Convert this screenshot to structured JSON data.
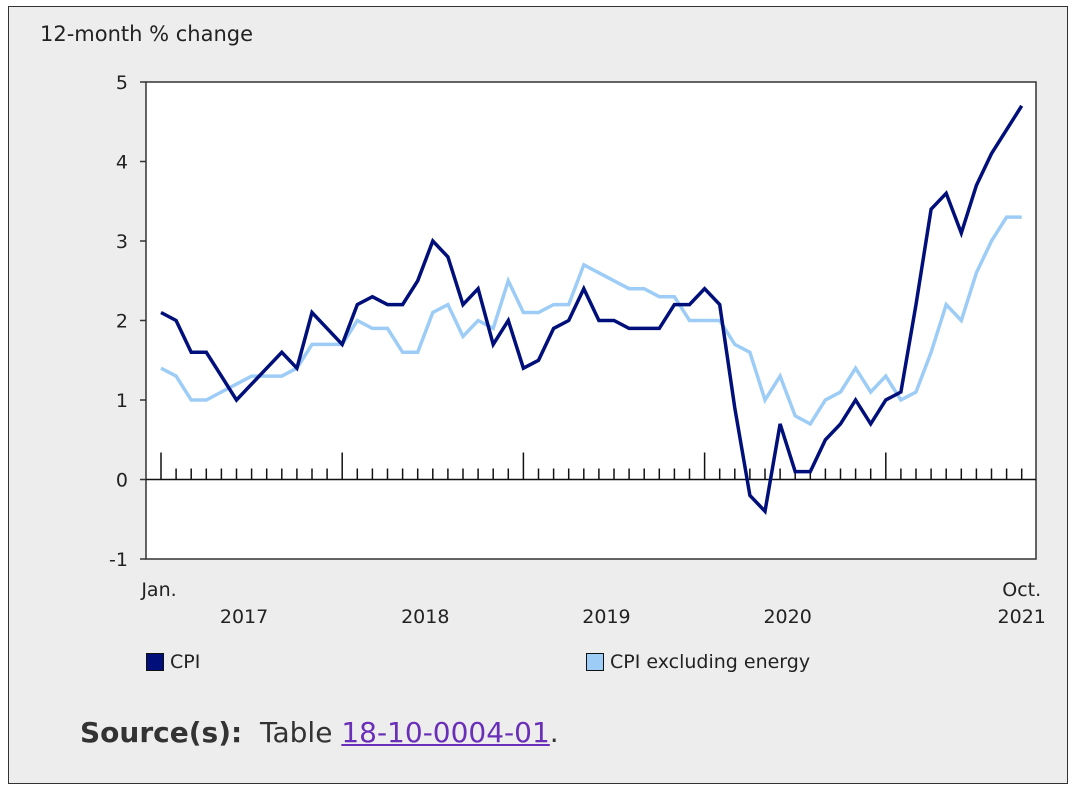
{
  "chart_data": {
    "type": "line",
    "unit_label": "12-month % change",
    "ylim": [
      -1,
      5
    ],
    "yticks": [
      -1,
      0,
      1,
      2,
      3,
      4,
      5
    ],
    "x_start": "2017-01",
    "x_end": "2021-10",
    "x_first_label": "Jan.",
    "x_last_label": "Oct.",
    "year_labels": [
      "2017",
      "2018",
      "2019",
      "2020",
      "2021"
    ],
    "grid": false,
    "legend_position": "bottom",
    "series": [
      {
        "name": "CPI",
        "color": "#000f7a",
        "values": [
          2.1,
          2.0,
          1.6,
          1.6,
          1.3,
          1.0,
          1.2,
          1.4,
          1.6,
          1.4,
          2.1,
          1.9,
          1.7,
          2.2,
          2.3,
          2.2,
          2.2,
          2.5,
          3.0,
          2.8,
          2.2,
          2.4,
          1.7,
          2.0,
          1.4,
          1.5,
          1.9,
          2.0,
          2.4,
          2.0,
          2.0,
          1.9,
          1.9,
          1.9,
          2.2,
          2.2,
          2.4,
          2.2,
          0.9,
          -0.2,
          -0.4,
          0.7,
          0.1,
          0.1,
          0.5,
          0.7,
          1.0,
          0.7,
          1.0,
          1.1,
          2.2,
          3.4,
          3.6,
          3.1,
          3.7,
          4.1,
          4.4,
          4.7
        ]
      },
      {
        "name": "CPI excluding energy",
        "color": "#9dcdf6",
        "values": [
          1.4,
          1.3,
          1.0,
          1.0,
          1.1,
          1.2,
          1.3,
          1.3,
          1.3,
          1.4,
          1.7,
          1.7,
          1.7,
          2.0,
          1.9,
          1.9,
          1.6,
          1.6,
          2.1,
          2.2,
          1.8,
          2.0,
          1.9,
          2.5,
          2.1,
          2.1,
          2.2,
          2.2,
          2.7,
          2.6,
          2.5,
          2.4,
          2.4,
          2.3,
          2.3,
          2.0,
          2.0,
          2.0,
          1.7,
          1.6,
          1.0,
          1.3,
          0.8,
          0.7,
          1.0,
          1.1,
          1.4,
          1.1,
          1.3,
          1.0,
          1.1,
          1.6,
          2.2,
          2.0,
          2.6,
          3.0,
          3.3,
          3.3
        ]
      }
    ]
  },
  "source": {
    "label": "Source(s):",
    "prefix": "Table",
    "link_text": "18-10-0004-01",
    "suffix": "."
  }
}
